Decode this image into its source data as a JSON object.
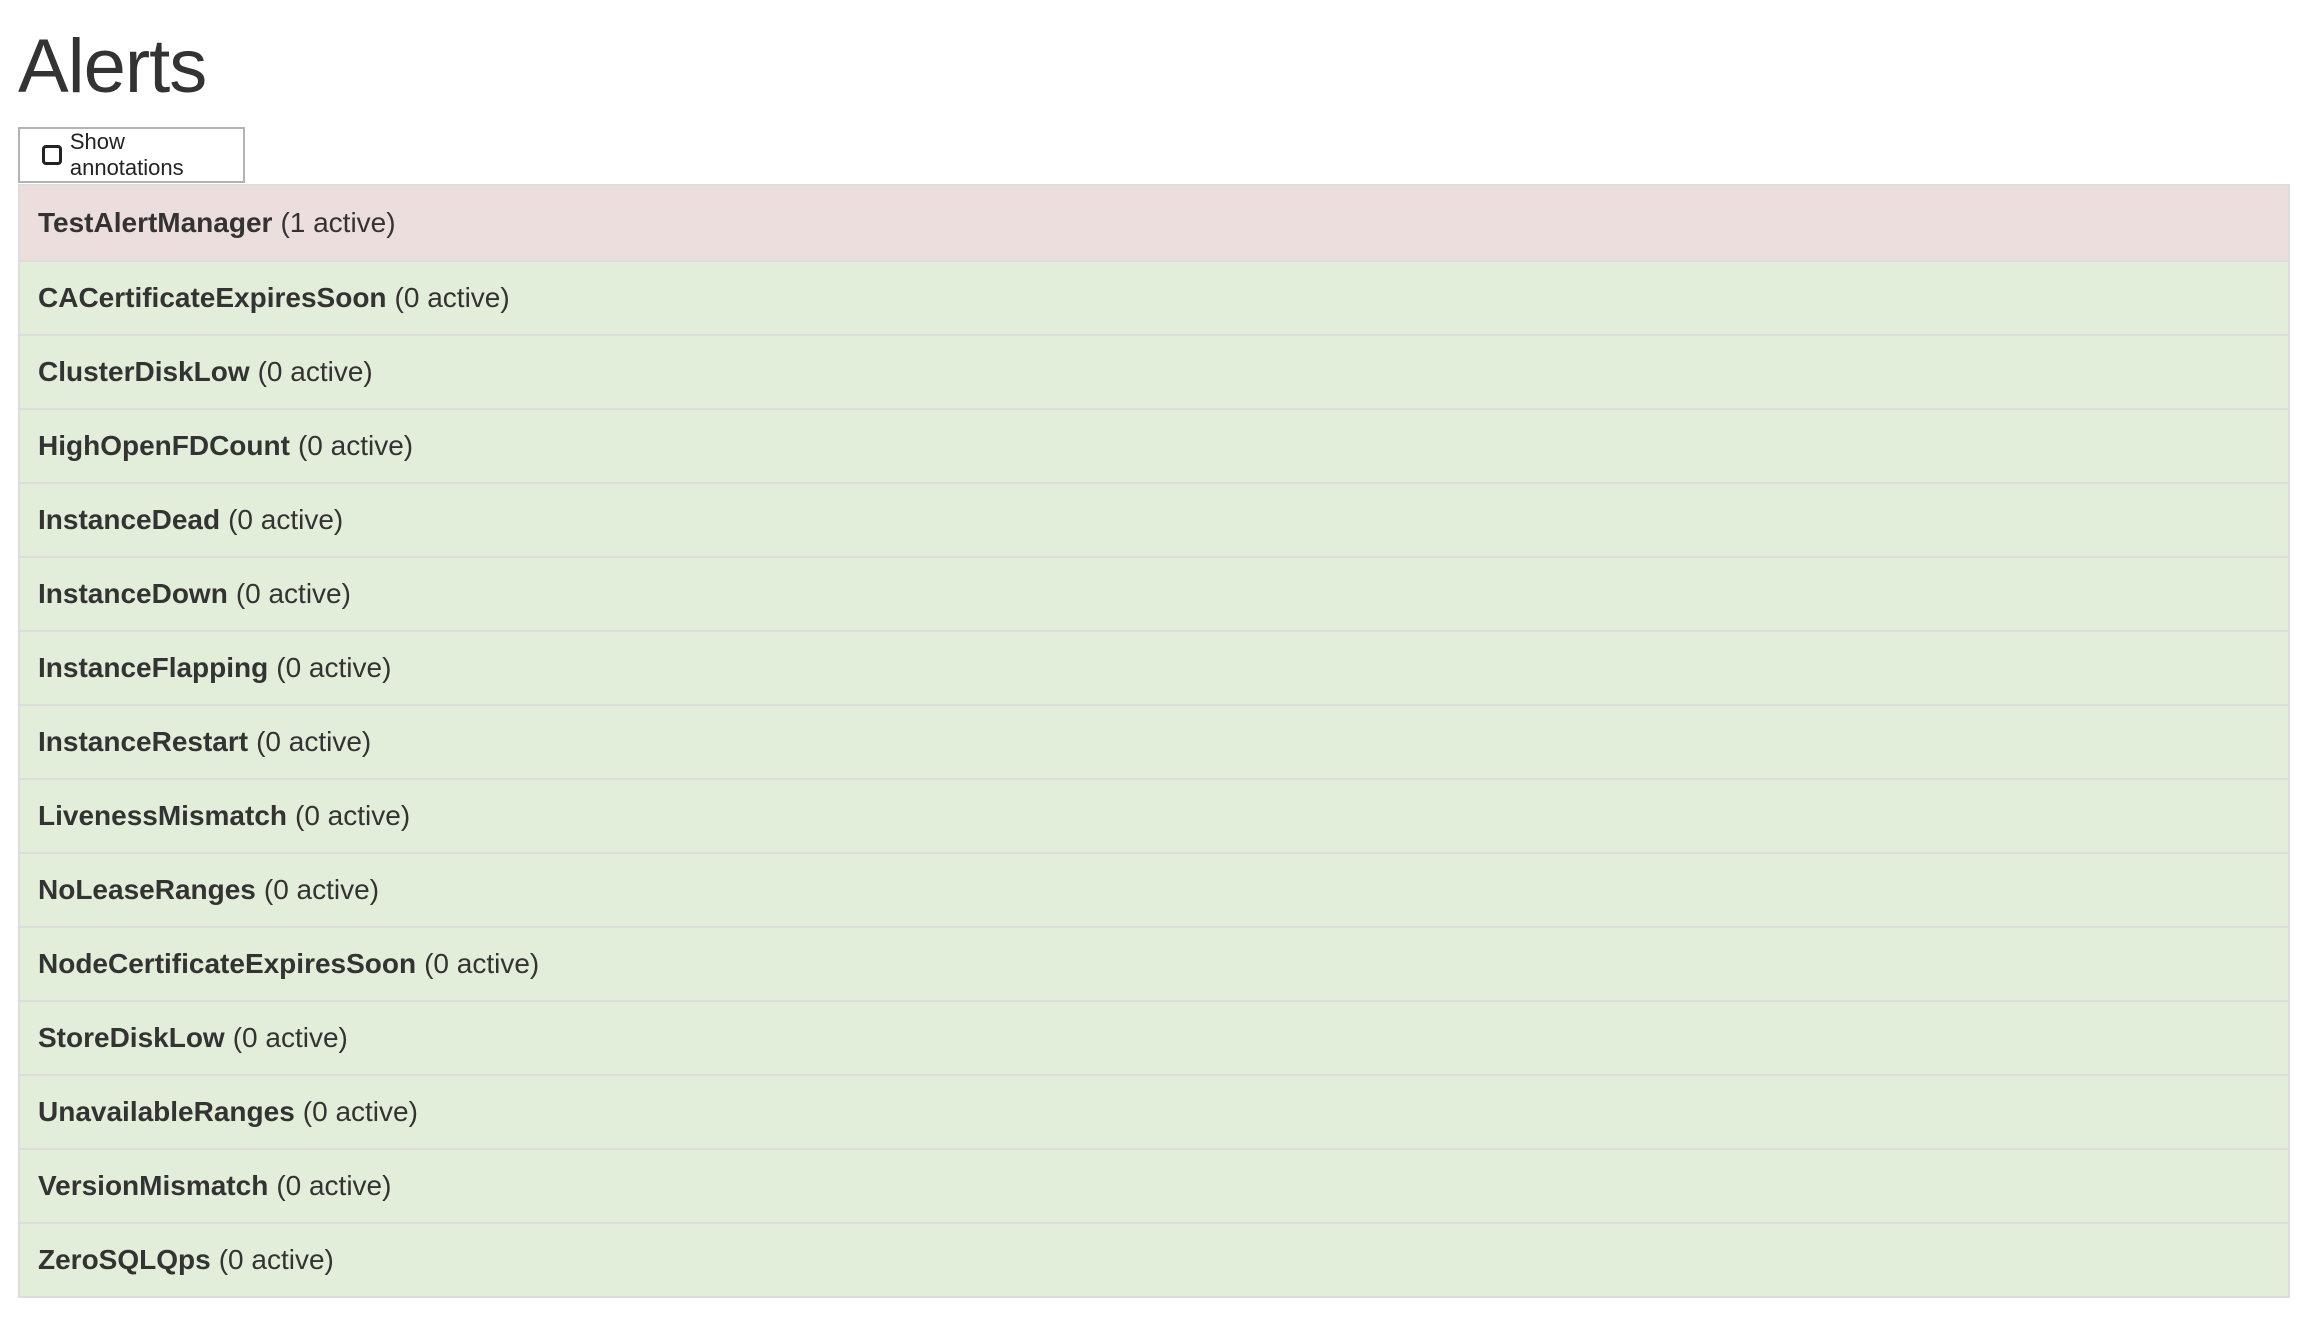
{
  "page": {
    "title": "Alerts"
  },
  "toolbar": {
    "show_annotations_label": "Show annotations",
    "show_annotations_checked": false
  },
  "colors": {
    "firing": "#eddede",
    "inactive": "#e2eed9",
    "border": "#dddddd"
  },
  "alerts": [
    {
      "name": "TestAlertManager",
      "status": "(1 active)",
      "state": "firing"
    },
    {
      "name": "CACertificateExpiresSoon",
      "status": "(0 active)",
      "state": "inactive"
    },
    {
      "name": "ClusterDiskLow",
      "status": "(0 active)",
      "state": "inactive"
    },
    {
      "name": "HighOpenFDCount",
      "status": "(0 active)",
      "state": "inactive"
    },
    {
      "name": "InstanceDead",
      "status": "(0 active)",
      "state": "inactive"
    },
    {
      "name": "InstanceDown",
      "status": "(0 active)",
      "state": "inactive"
    },
    {
      "name": "InstanceFlapping",
      "status": "(0 active)",
      "state": "inactive"
    },
    {
      "name": "InstanceRestart",
      "status": "(0 active)",
      "state": "inactive"
    },
    {
      "name": "LivenessMismatch",
      "status": "(0 active)",
      "state": "inactive"
    },
    {
      "name": "NoLeaseRanges",
      "status": "(0 active)",
      "state": "inactive"
    },
    {
      "name": "NodeCertificateExpiresSoon",
      "status": "(0 active)",
      "state": "inactive"
    },
    {
      "name": "StoreDiskLow",
      "status": "(0 active)",
      "state": "inactive"
    },
    {
      "name": "UnavailableRanges",
      "status": "(0 active)",
      "state": "inactive"
    },
    {
      "name": "VersionMismatch",
      "status": "(0 active)",
      "state": "inactive"
    },
    {
      "name": "ZeroSQLQps",
      "status": "(0 active)",
      "state": "inactive"
    }
  ]
}
